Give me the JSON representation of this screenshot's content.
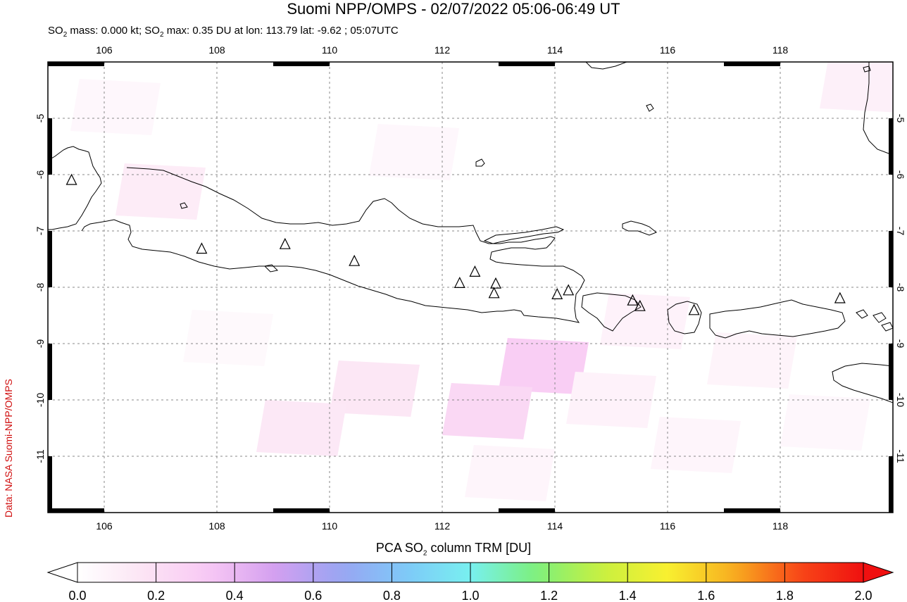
{
  "header": {
    "title": "Suomi NPP/OMPS - 02/07/2022 05:06-06:49 UT",
    "subtitle_parts": [
      "SO",
      "2",
      " mass: 0.000 kt; SO",
      "2",
      " max: 0.35 DU at lon: 113.79 lat: -9.62 ; 05:07UTC"
    ]
  },
  "credit": "Data: NASA Suomi-NPP/OMPS",
  "map": {
    "lon_range": [
      105.0,
      120.0
    ],
    "lat_range": [
      -12.0,
      -4.0
    ],
    "lon_ticks": [
      "106",
      "108",
      "110",
      "112",
      "114",
      "116",
      "118"
    ],
    "lat_ticks": [
      "-5",
      "-6",
      "-7",
      "-8",
      "-9",
      "-10",
      "-11"
    ],
    "grid": "dashed",
    "background_color": "#ffffff",
    "volcano_markers": [
      {
        "lon": 105.42,
        "lat": -6.1
      },
      {
        "lon": 107.73,
        "lat": -7.32
      },
      {
        "lon": 109.21,
        "lat": -7.24
      },
      {
        "lon": 110.44,
        "lat": -7.54
      },
      {
        "lon": 112.31,
        "lat": -7.93
      },
      {
        "lon": 112.58,
        "lat": -7.73
      },
      {
        "lon": 112.95,
        "lat": -7.94
      },
      {
        "lon": 112.92,
        "lat": -8.11
      },
      {
        "lon": 114.04,
        "lat": -8.13
      },
      {
        "lon": 114.24,
        "lat": -8.06
      },
      {
        "lon": 115.38,
        "lat": -8.24
      },
      {
        "lon": 115.51,
        "lat": -8.34
      },
      {
        "lon": 116.47,
        "lat": -8.41
      },
      {
        "lon": 119.06,
        "lat": -8.2
      }
    ],
    "so2_cells": [
      {
        "lon": 113.8,
        "lat": -9.4,
        "value": 0.3
      },
      {
        "lon": 112.8,
        "lat": -10.2,
        "value": 0.24
      },
      {
        "lon": 110.8,
        "lat": -9.8,
        "value": 0.15
      },
      {
        "lon": 109.5,
        "lat": -10.5,
        "value": 0.14
      },
      {
        "lon": 107.0,
        "lat": -6.3,
        "value": 0.12
      },
      {
        "lon": 115.0,
        "lat": -10.0,
        "value": 0.08
      },
      {
        "lon": 116.5,
        "lat": -10.8,
        "value": 0.06
      },
      {
        "lon": 111.5,
        "lat": -5.6,
        "value": 0.05
      },
      {
        "lon": 117.5,
        "lat": -9.3,
        "value": 0.07
      },
      {
        "lon": 119.5,
        "lat": -4.4,
        "value": 0.09
      },
      {
        "lon": 106.2,
        "lat": -4.8,
        "value": 0.05
      },
      {
        "lon": 113.2,
        "lat": -11.3,
        "value": 0.06
      },
      {
        "lon": 118.8,
        "lat": -10.4,
        "value": 0.05
      },
      {
        "lon": 108.2,
        "lat": -8.9,
        "value": 0.04
      },
      {
        "lon": 115.6,
        "lat": -8.6,
        "value": 0.08
      }
    ]
  },
  "colorbar": {
    "title_parts": [
      "PCA SO",
      "2",
      " column TRM [DU]"
    ],
    "tick_labels": [
      "0.0",
      "0.2",
      "0.4",
      "0.6",
      "0.8",
      "1.0",
      "1.2",
      "1.4",
      "1.6",
      "1.8",
      "2.0"
    ],
    "range": [
      0.0,
      2.0
    ],
    "colors": [
      "#ffffff",
      "#fce4f4",
      "#f8c8f4",
      "#d4a0f0",
      "#9aa4f2",
      "#7ec8f8",
      "#78f0f0",
      "#7cf07c",
      "#c8f040",
      "#f8f030",
      "#f8b020",
      "#f84818",
      "#f01010"
    ]
  }
}
